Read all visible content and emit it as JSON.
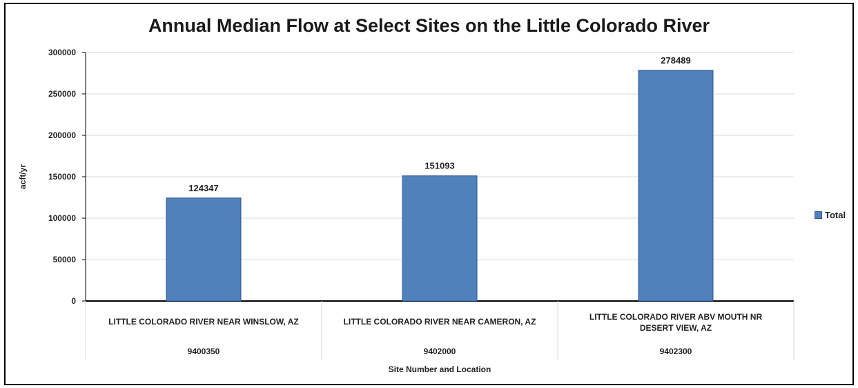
{
  "chart_data": {
    "type": "bar",
    "title": "Annual Median Flow at Select Sites on the Little Colorado River",
    "ylabel": "acft/yr",
    "xlabel": "Site Number and Location",
    "ylim": [
      0,
      300000
    ],
    "yticks": [
      0,
      50000,
      100000,
      150000,
      200000,
      250000,
      300000
    ],
    "grid": true,
    "legend_position": "right",
    "categories": [
      {
        "location": [
          "LITTLE COLORADO RIVER NEAR WINSLOW, AZ"
        ],
        "site": "9400350"
      },
      {
        "location": [
          "LITTLE COLORADO RIVER NEAR CAMERON, AZ"
        ],
        "site": "9402000"
      },
      {
        "location": [
          "LITTLE COLORADO RIVER ABV MOUTH NR",
          "DESERT VIEW, AZ"
        ],
        "site": "9402300"
      }
    ],
    "series": [
      {
        "name": "Total",
        "values": [
          124347,
          151093,
          278489
        ],
        "color": "#4F81BD"
      }
    ]
  }
}
